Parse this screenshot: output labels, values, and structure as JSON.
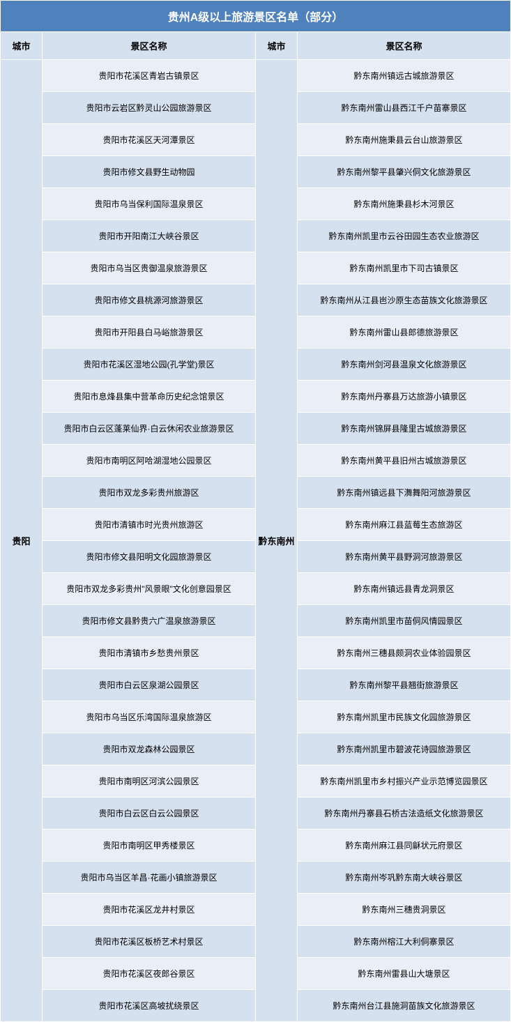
{
  "title": "贵州A级以上旅游景区名单（部分）",
  "headers": {
    "city": "城市",
    "scenic": "景区名称"
  },
  "colors": {
    "title_bg": "#4f81bd",
    "header_bg": "#d6e1f0",
    "odd_bg": "#eaeff7",
    "even_bg": "#d6e1f0"
  },
  "left": {
    "city": "贵阳",
    "items": [
      "贵阳市花溪区青岩古镇景区",
      "贵阳市云岩区黔灵山公园旅游景区",
      "贵阳市花溪区天河潭景区",
      "贵阳市修文县野生动物园",
      "贵阳市乌当保利国际温泉景区",
      "贵阳市开阳南江大峡谷景区",
      "贵阳市乌当区贵御温泉旅游景区",
      "贵阳市修文县桃源河旅游景区",
      "贵阳市开阳县白马峪旅游景区",
      "贵阳市花溪区湿地公园(孔学堂)景区",
      "贵阳市息烽县集中营革命历史纪念馆景区",
      "贵阳市白云区蓬莱仙界·白云休闲农业旅游景区",
      "贵阳市南明区阿哈湖湿地公园景区",
      "贵阳市双龙多彩贵州旅游区",
      "贵阳市清镇市时光贵州旅游区",
      "贵阳市修文县阳明文化园旅游景区",
      "贵阳市双龙多彩贵州\"风景眼\"文化创意园景区",
      "贵阳市修文县黔贵六广温泉旅游景区",
      "贵阳市清镇市乡愁贵州景区",
      "贵阳市白云区泉湖公园景区",
      "贵阳市乌当区乐湾国际温泉旅游区",
      "贵阳市双龙森林公园景区",
      "贵阳市南明区河滨公园景区",
      "贵阳市白云区白云公园景区",
      "贵阳市南明区甲秀楼景区",
      "贵阳市乌当区羊昌·花画小镇旅游景区",
      "贵阳市花溪区龙井村景区",
      "贵阳市花溪区板桥艺术村景区",
      "贵阳市花溪区夜郎谷景区",
      "贵阳市花溪区高坡扰绕景区"
    ]
  },
  "right": {
    "city": "黔东南州",
    "items": [
      "黔东南州镇远古城旅游景区",
      "黔东南州雷山县西江千户苗寨景区",
      "黔东南州施秉县云台山旅游景区",
      "黔东南州黎平县肇兴侗文化旅游景区",
      "黔东南州施秉县杉木河景区",
      "黔东南州凯里市云谷田园生态农业旅游区",
      "黔东南州凯里市下司古镇景区",
      "黔东南州从江县岜沙原生态苗族文化旅游景区",
      "黔东南州雷山县郎德旅游景区",
      "黔东南州剑河县温泉文化旅游景区",
      "黔东南州丹寨县万达旅游小镇景区",
      "黔东南州锦屏县隆里古城旅游景区",
      "黔东南州黄平县旧州古城旅游景区",
      "黔东南州镇远县下㵲舞阳河旅游景区",
      "黔东南州麻江县蓝莓生态旅游区",
      "黔东南州黄平县野洞河旅游景区",
      "黔东南州镇远县青龙洞景区",
      "黔东南州凯里市苗侗风情园景区",
      "黔东南州三穗县颇洞农业体验园景区",
      "黔东南州黎平县翘街旅游景区",
      "黔东南州凯里市民族文化园旅游景区",
      "黔东南州凯里市碧波花诗园旅游景区",
      "黔东南州凯里市乡村振兴产业示范博览园景区",
      "黔东南州丹寨县石桥古法造纸文化旅游景区",
      "黔东南州麻江县同龢状元府景区",
      "黔东南州岑巩黔东南大峡谷景区",
      "黔东南州三穗贵洞景区",
      "黔东南州榕江大利侗寨景区",
      "黔东南州雷县山大塘景区",
      "黔东南州台江县施洞苗族文化旅游景区"
    ]
  }
}
